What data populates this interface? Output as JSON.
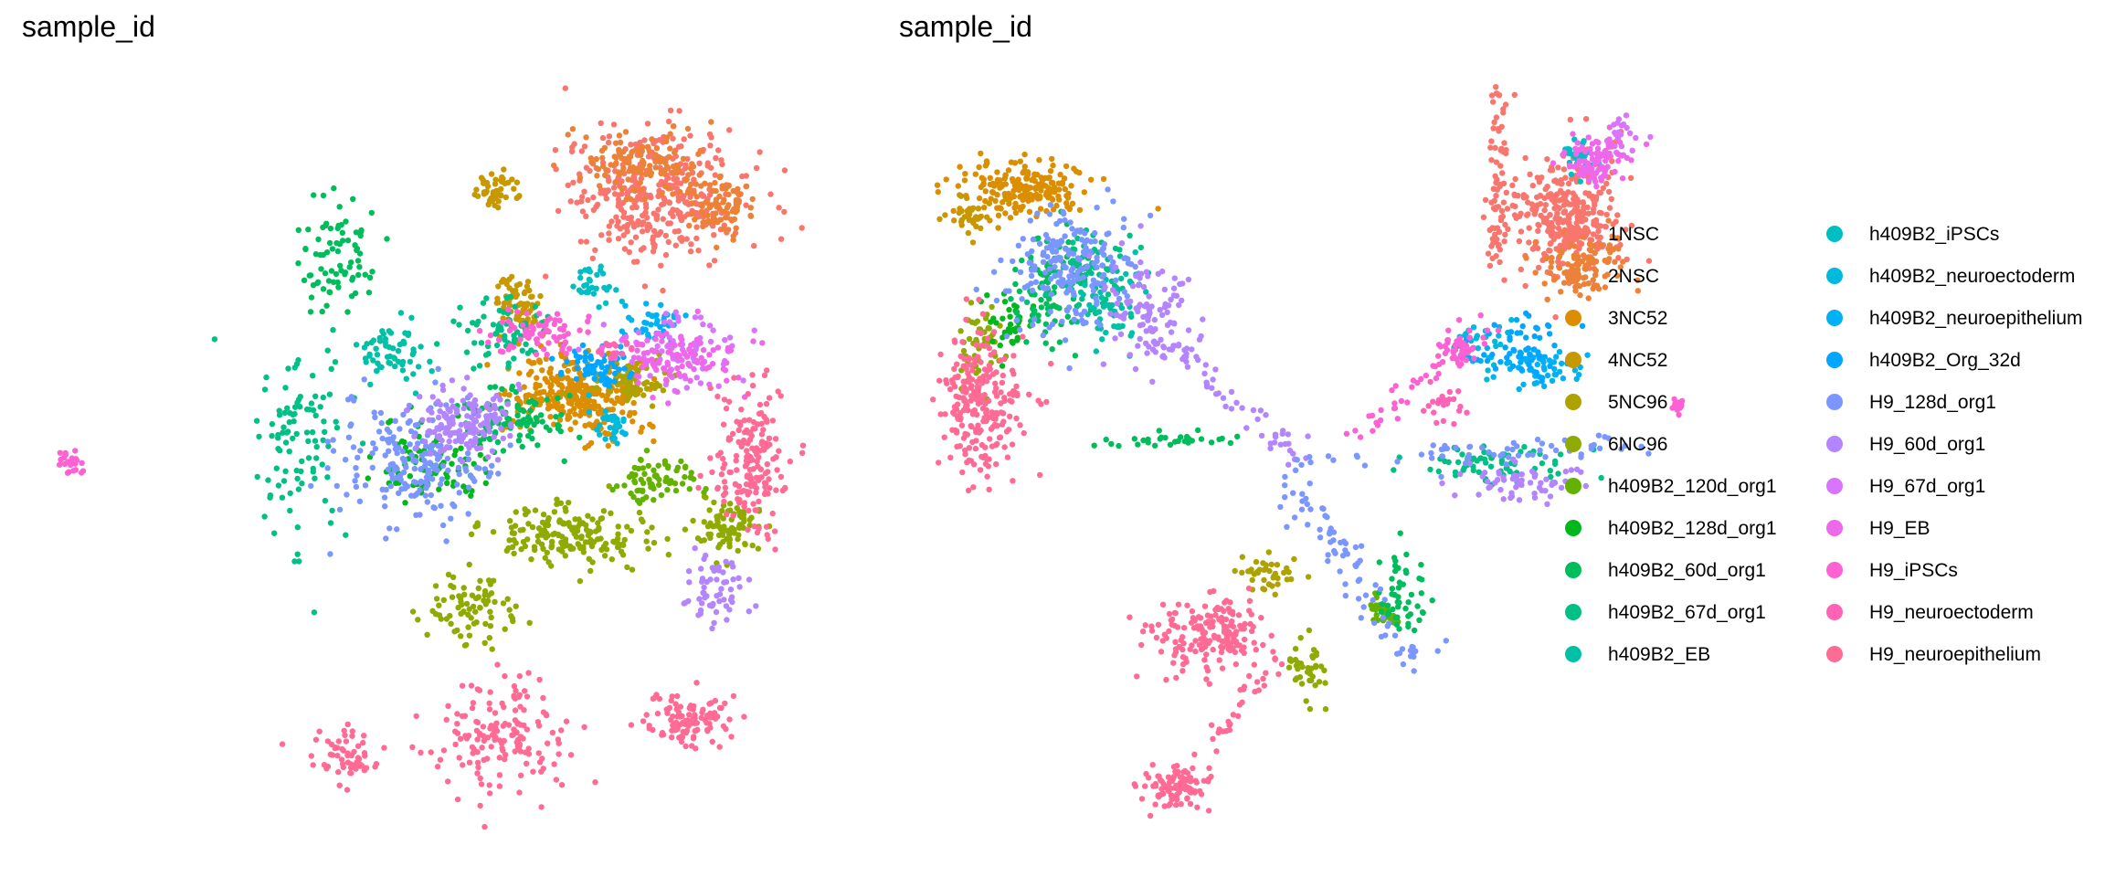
{
  "chart_data": [
    {
      "type": "scatter",
      "title": "sample_id",
      "xlabel": "",
      "ylabel": "",
      "grid": false,
      "axes_visible": false,
      "clusters": [
        {
          "group": "1NSC",
          "cx": 0.62,
          "cy": 0.72,
          "rx": 0.23,
          "ry": 0.17,
          "n": 380
        },
        {
          "group": "2NSC",
          "cx": 0.58,
          "cy": 0.8,
          "rx": 0.15,
          "ry": 0.08,
          "n": 140
        },
        {
          "group": "2NSC",
          "cx": 0.8,
          "cy": 0.68,
          "rx": 0.08,
          "ry": 0.07,
          "n": 80
        },
        {
          "group": "3NC52",
          "cx": 0.4,
          "cy": 0.18,
          "rx": 0.18,
          "ry": 0.1,
          "n": 300
        },
        {
          "group": "4NC52",
          "cx": 0.25,
          "cy": 0.42,
          "rx": 0.06,
          "ry": 0.07,
          "n": 70
        },
        {
          "group": "4NC52",
          "cx": 0.18,
          "cy": 0.73,
          "rx": 0.05,
          "ry": 0.04,
          "n": 50
        },
        {
          "group": "5NC96",
          "cx": 0.55,
          "cy": 0.22,
          "rx": 0.1,
          "ry": 0.06,
          "n": 90
        },
        {
          "group": "6NC96",
          "cx": 0.4,
          "cy": -0.2,
          "rx": 0.2,
          "ry": 0.08,
          "n": 180
        },
        {
          "group": "6NC96",
          "cx": 0.82,
          "cy": -0.18,
          "rx": 0.08,
          "ry": 0.07,
          "n": 80
        },
        {
          "group": "6NC96",
          "cx": 0.12,
          "cy": -0.4,
          "rx": 0.12,
          "ry": 0.08,
          "n": 80
        },
        {
          "group": "h409B2_120d_org1",
          "cx": 0.62,
          "cy": -0.05,
          "rx": 0.1,
          "ry": 0.05,
          "n": 70
        },
        {
          "group": "h409B2_128d_org1",
          "cx": 0.0,
          "cy": 0.0,
          "rx": 0.14,
          "ry": 0.1,
          "n": 80
        },
        {
          "group": "h409B2_60d_org1",
          "cx": 0.23,
          "cy": 0.12,
          "rx": 0.12,
          "ry": 0.08,
          "n": 90
        },
        {
          "group": "h409B2_60d_org1",
          "cx": -0.25,
          "cy": 0.55,
          "rx": 0.1,
          "ry": 0.14,
          "n": 80
        },
        {
          "group": "h409B2_67d_org1",
          "cx": 0.2,
          "cy": 0.35,
          "rx": 0.12,
          "ry": 0.08,
          "n": 70
        },
        {
          "group": "h409B2_67d_org1",
          "cx": -0.35,
          "cy": 0.05,
          "rx": 0.12,
          "ry": 0.25,
          "n": 100
        },
        {
          "group": "h409B2_EB",
          "cx": -0.1,
          "cy": 0.3,
          "rx": 0.1,
          "ry": 0.08,
          "n": 60
        },
        {
          "group": "h409B2_iPSCs",
          "cx": 0.45,
          "cy": 0.48,
          "rx": 0.05,
          "ry": 0.05,
          "n": 30
        },
        {
          "group": "h409B2_neuroectoderm",
          "cx": 0.5,
          "cy": 0.1,
          "rx": 0.06,
          "ry": 0.05,
          "n": 30
        },
        {
          "group": "h409B2_neuroepithelium",
          "cx": 0.6,
          "cy": 0.38,
          "rx": 0.08,
          "ry": 0.05,
          "n": 40
        },
        {
          "group": "h409B2_Org_32d",
          "cx": 0.45,
          "cy": 0.25,
          "rx": 0.1,
          "ry": 0.05,
          "n": 60
        },
        {
          "group": "H9_128d_org1",
          "cx": -0.05,
          "cy": 0.0,
          "rx": 0.2,
          "ry": 0.15,
          "n": 200
        },
        {
          "group": "H9_60d_org1",
          "cx": 0.1,
          "cy": 0.1,
          "rx": 0.12,
          "ry": 0.08,
          "n": 150
        },
        {
          "group": "H9_60d_org1",
          "cx": 0.78,
          "cy": -0.35,
          "rx": 0.08,
          "ry": 0.08,
          "n": 60
        },
        {
          "group": "H9_67d_org1",
          "cx": 0.7,
          "cy": 0.3,
          "rx": 0.15,
          "ry": 0.1,
          "n": 80
        },
        {
          "group": "H9_EB",
          "cx": 0.68,
          "cy": 0.28,
          "rx": 0.14,
          "ry": 0.08,
          "n": 90
        },
        {
          "group": "H9_iPSCs",
          "cx": 0.3,
          "cy": 0.35,
          "rx": 0.12,
          "ry": 0.05,
          "n": 70
        },
        {
          "group": "H9_iPSCs",
          "cx": -0.98,
          "cy": 0.0,
          "rx": 0.03,
          "ry": 0.03,
          "n": 25
        },
        {
          "group": "H9_neuroectoderm",
          "cx": 0.5,
          "cy": 0.3,
          "rx": 0.05,
          "ry": 0.04,
          "n": 20
        },
        {
          "group": "H9_neuroepithelium",
          "cx": 0.88,
          "cy": 0.0,
          "rx": 0.1,
          "ry": 0.18,
          "n": 180
        },
        {
          "group": "H9_neuroepithelium",
          "cx": 0.2,
          "cy": -0.75,
          "rx": 0.16,
          "ry": 0.14,
          "n": 160
        },
        {
          "group": "H9_neuroepithelium",
          "cx": 0.7,
          "cy": -0.7,
          "rx": 0.11,
          "ry": 0.07,
          "n": 110
        },
        {
          "group": "H9_neuroepithelium",
          "cx": -0.22,
          "cy": -0.8,
          "rx": 0.08,
          "ry": 0.06,
          "n": 60
        }
      ]
    },
    {
      "type": "scatter",
      "title": "sample_id",
      "xlabel": "",
      "ylabel": "",
      "grid": false,
      "axes_visible": false,
      "clusters": [
        {
          "group": "1NSC",
          "cx": 0.6,
          "cy": 0.65,
          "rx": 0.14,
          "ry": 0.14,
          "n": 340
        },
        {
          "group": "2NSC",
          "cx": 0.66,
          "cy": 0.52,
          "rx": 0.1,
          "ry": 0.07,
          "n": 110
        },
        {
          "group": "3NC52",
          "cx": -0.76,
          "cy": 0.72,
          "rx": 0.14,
          "ry": 0.07,
          "n": 200
        },
        {
          "group": "4NC52",
          "cx": -0.9,
          "cy": 0.65,
          "rx": 0.05,
          "ry": 0.05,
          "n": 40
        },
        {
          "group": "5NC96",
          "cx": -0.15,
          "cy": -0.3,
          "rx": 0.06,
          "ry": 0.05,
          "n": 40
        },
        {
          "group": "6NC96",
          "cx": -0.88,
          "cy": 0.3,
          "rx": 0.05,
          "ry": 0.1,
          "n": 50
        },
        {
          "group": "6NC96",
          "cx": -0.05,
          "cy": -0.55,
          "rx": 0.04,
          "ry": 0.07,
          "n": 40
        },
        {
          "group": "h409B2_120d_org1",
          "cx": 0.15,
          "cy": -0.4,
          "rx": 0.04,
          "ry": 0.04,
          "n": 30
        },
        {
          "group": "h409B2_128d_org1",
          "cx": -0.8,
          "cy": 0.35,
          "rx": 0.06,
          "ry": 0.08,
          "n": 40
        },
        {
          "group": "h409B2_60d_org1",
          "cx": -0.7,
          "cy": 0.45,
          "rx": 0.08,
          "ry": 0.12,
          "n": 90
        },
        {
          "group": "h409B2_60d_org1",
          "cx": 0.2,
          "cy": -0.35,
          "rx": 0.06,
          "ry": 0.1,
          "n": 50
        },
        {
          "group": "h409B2_67d_org1",
          "cx": -0.62,
          "cy": 0.5,
          "rx": 0.1,
          "ry": 0.1,
          "n": 80
        },
        {
          "group": "h409B2_67d_org1",
          "cx": 0.45,
          "cy": 0.0,
          "rx": 0.2,
          "ry": 0.05,
          "n": 70
        },
        {
          "group": "h409B2_EB",
          "cx": -0.55,
          "cy": 0.4,
          "rx": 0.08,
          "ry": 0.1,
          "n": 50
        },
        {
          "group": "h409B2_iPSCs",
          "cx": 0.65,
          "cy": 0.8,
          "rx": 0.05,
          "ry": 0.05,
          "n": 30
        },
        {
          "group": "h409B2_neuroectoderm",
          "cx": 0.4,
          "cy": 0.3,
          "rx": 0.08,
          "ry": 0.08,
          "n": 30
        },
        {
          "group": "h409B2_neuroepithelium",
          "cx": 0.55,
          "cy": 0.25,
          "rx": 0.1,
          "ry": 0.06,
          "n": 50
        },
        {
          "group": "h409B2_Org_32d",
          "cx": 0.5,
          "cy": 0.3,
          "rx": 0.1,
          "ry": 0.07,
          "n": 60
        },
        {
          "group": "H9_128d_org1",
          "cx": -0.65,
          "cy": 0.5,
          "rx": 0.15,
          "ry": 0.15,
          "n": 200
        },
        {
          "group": "H9_60d_org1",
          "cx": -0.45,
          "cy": 0.4,
          "rx": 0.1,
          "ry": 0.15,
          "n": 100
        },
        {
          "group": "H9_60d_org1",
          "cx": 0.5,
          "cy": -0.05,
          "rx": 0.15,
          "ry": 0.05,
          "n": 60
        },
        {
          "group": "H9_67d_org1",
          "cx": 0.75,
          "cy": 0.85,
          "rx": 0.05,
          "ry": 0.05,
          "n": 25
        },
        {
          "group": "H9_EB",
          "cx": 0.7,
          "cy": 0.8,
          "rx": 0.07,
          "ry": 0.06,
          "n": 90
        },
        {
          "group": "H9_iPSCs",
          "cx": 0.35,
          "cy": 0.3,
          "rx": 0.06,
          "ry": 0.05,
          "n": 40
        },
        {
          "group": "H9_iPSCs",
          "cx": 0.9,
          "cy": 0.15,
          "rx": 0.02,
          "ry": 0.03,
          "n": 15
        },
        {
          "group": "H9_neuroectoderm",
          "cx": 0.3,
          "cy": 0.15,
          "rx": 0.05,
          "ry": 0.05,
          "n": 25
        },
        {
          "group": "H9_neuroepithelium",
          "cx": -0.88,
          "cy": 0.15,
          "rx": 0.1,
          "ry": 0.17,
          "n": 240
        },
        {
          "group": "H9_neuroepithelium",
          "cx": -0.3,
          "cy": -0.45,
          "rx": 0.13,
          "ry": 0.09,
          "n": 170
        },
        {
          "group": "H9_neuroepithelium",
          "cx": -0.38,
          "cy": -0.86,
          "rx": 0.08,
          "ry": 0.05,
          "n": 90
        }
      ],
      "paths": [
        {
          "group": "1NSC",
          "from": [
            0.44,
            0.98
          ],
          "to": [
            0.44,
            0.5
          ],
          "n": 60,
          "spread": 0.015
        },
        {
          "group": "H9_60d_org1",
          "from": [
            -0.45,
            0.35
          ],
          "to": [
            -0.05,
            0.0
          ],
          "n": 60,
          "spread": 0.02
        },
        {
          "group": "h409B2_60d_org1",
          "from": [
            -0.6,
            0.05
          ],
          "to": [
            -0.2,
            0.06
          ],
          "n": 30,
          "spread": 0.01
        },
        {
          "group": "H9_128d_org1",
          "from": [
            -0.1,
            -0.05
          ],
          "to": [
            0.25,
            -0.55
          ],
          "n": 80,
          "spread": 0.025
        },
        {
          "group": "H9_neuroepithelium",
          "from": [
            -0.38,
            -0.86
          ],
          "to": [
            -0.1,
            -0.5
          ],
          "n": 40,
          "spread": 0.015
        },
        {
          "group": "H9_iPSCs",
          "from": [
            0.05,
            0.05
          ],
          "to": [
            0.4,
            0.35
          ],
          "n": 40,
          "spread": 0.015
        },
        {
          "group": "H9_128d_org1",
          "from": [
            -0.05,
            0.0
          ],
          "to": [
            0.8,
            0.05
          ],
          "n": 60,
          "spread": 0.02
        }
      ]
    }
  ],
  "legend": {
    "placement": "right",
    "items": [
      {
        "label": "1NSC",
        "color": "#F8766D"
      },
      {
        "label": "2NSC",
        "color": "#EC8239"
      },
      {
        "label": "3NC52",
        "color": "#DB8E00"
      },
      {
        "label": "4NC52",
        "color": "#C79800"
      },
      {
        "label": "5NC96",
        "color": "#AEA200"
      },
      {
        "label": "6NC96",
        "color": "#8FAA00"
      },
      {
        "label": "h409B2_120d_org1",
        "color": "#64B200"
      },
      {
        "label": "h409B2_128d_org1",
        "color": "#00B81B"
      },
      {
        "label": "h409B2_60d_org1",
        "color": "#00BD5C"
      },
      {
        "label": "h409B2_67d_org1",
        "color": "#00C085"
      },
      {
        "label": "h409B2_EB",
        "color": "#00C1A7"
      },
      {
        "label": "h409B2_iPSCs",
        "color": "#00BFC4"
      },
      {
        "label": "h409B2_neuroectoderm",
        "color": "#00BADE"
      },
      {
        "label": "h409B2_neuroepithelium",
        "color": "#00B2F3"
      },
      {
        "label": "h409B2_Org_32d",
        "color": "#00A6FF"
      },
      {
        "label": "H9_128d_org1",
        "color": "#7C96FF"
      },
      {
        "label": "H9_60d_org1",
        "color": "#B385FF"
      },
      {
        "label": "H9_67d_org1",
        "color": "#D874FD"
      },
      {
        "label": "H9_EB",
        "color": "#EF67EB"
      },
      {
        "label": "H9_iPSCs",
        "color": "#FD61D3"
      },
      {
        "label": "H9_neuroectoderm",
        "color": "#FF63B6"
      },
      {
        "label": "H9_neuroepithelium",
        "color": "#FF6B94"
      }
    ]
  }
}
